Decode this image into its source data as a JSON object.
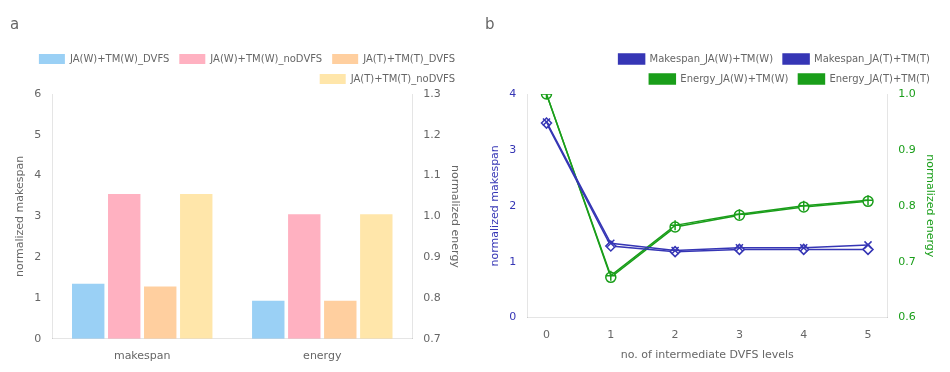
{
  "chart_data": [
    {
      "type": "bar",
      "title": "a",
      "categories": [
        "makespan",
        "energy"
      ],
      "series": [
        {
          "name": "JA(W)+TM(W)_DVFS",
          "values": [
            1.35,
            0.93
          ]
        },
        {
          "name": "JA(W)+TM(W)_noDVFS",
          "values": [
            3.55,
            3.05
          ]
        },
        {
          "name": "JA(T)+TM(T)_DVFS",
          "values": [
            1.28,
            0.93
          ]
        },
        {
          "name": "JA(T)+TM(T)_noDVFS",
          "values": [
            3.55,
            3.05
          ]
        }
      ],
      "ylabel": "normalized makespan",
      "y2label": "normalized energy",
      "ylim": [
        0,
        6
      ],
      "yticks": [
        0,
        1,
        2,
        3,
        4,
        5,
        6
      ],
      "y2lim": [
        0.7,
        1.3
      ],
      "y2ticks": [
        0.7,
        0.8,
        0.9,
        {
          "value": 1.0,
          "label": "1.0"
        },
        1.1,
        1.2,
        1.3
      ],
      "legend": "upper right",
      "grid": false
    },
    {
      "type": "line",
      "title": "b",
      "x": [
        0,
        1,
        2,
        3,
        4,
        5
      ],
      "xlim": [
        -0.3,
        5.3
      ],
      "xticks": [
        0,
        1,
        2,
        3,
        4,
        5
      ],
      "xlabel": "no. of intermediate DVFS levels",
      "ylabel": "normalized makespan",
      "y2label": "normalized energy",
      "ylim": [
        0,
        4
      ],
      "yticks": [
        0,
        1,
        2,
        3,
        4
      ],
      "y2lim": [
        0.6,
        1.0
      ],
      "y2ticks": [
        0.6,
        0.7,
        0.8,
        0.9,
        {
          "value": 1.0,
          "label": "1.0"
        }
      ],
      "series": [
        {
          "name": "Makespan_JA(W)+TM(W)",
          "color": "#3636b5",
          "marker": "x",
          "values": [
            3.5,
            1.33,
            1.2,
            1.25,
            1.25,
            1.3
          ]
        },
        {
          "name": "Makespan_JA(T)+TM(T)",
          "color": "#3636b5",
          "marker": "diamond",
          "values": [
            3.48,
            1.28,
            1.18,
            1.22,
            1.22,
            1.22
          ]
        },
        {
          "name": "Energy_JA(W)+TM(W)",
          "color": "#1a9e1a",
          "marker": "plus",
          "axis": "y2",
          "values": [
            1.0,
            0.675,
            0.765,
            0.785,
            0.8,
            0.81
          ]
        },
        {
          "name": "Energy_JA(T)+TM(T)",
          "color": "#1a9e1a",
          "marker": "circle",
          "axis": "y2",
          "values": [
            1.0,
            0.672,
            0.762,
            0.783,
            0.798,
            0.808
          ]
        }
      ],
      "legend": "upper right",
      "grid": false
    }
  ]
}
